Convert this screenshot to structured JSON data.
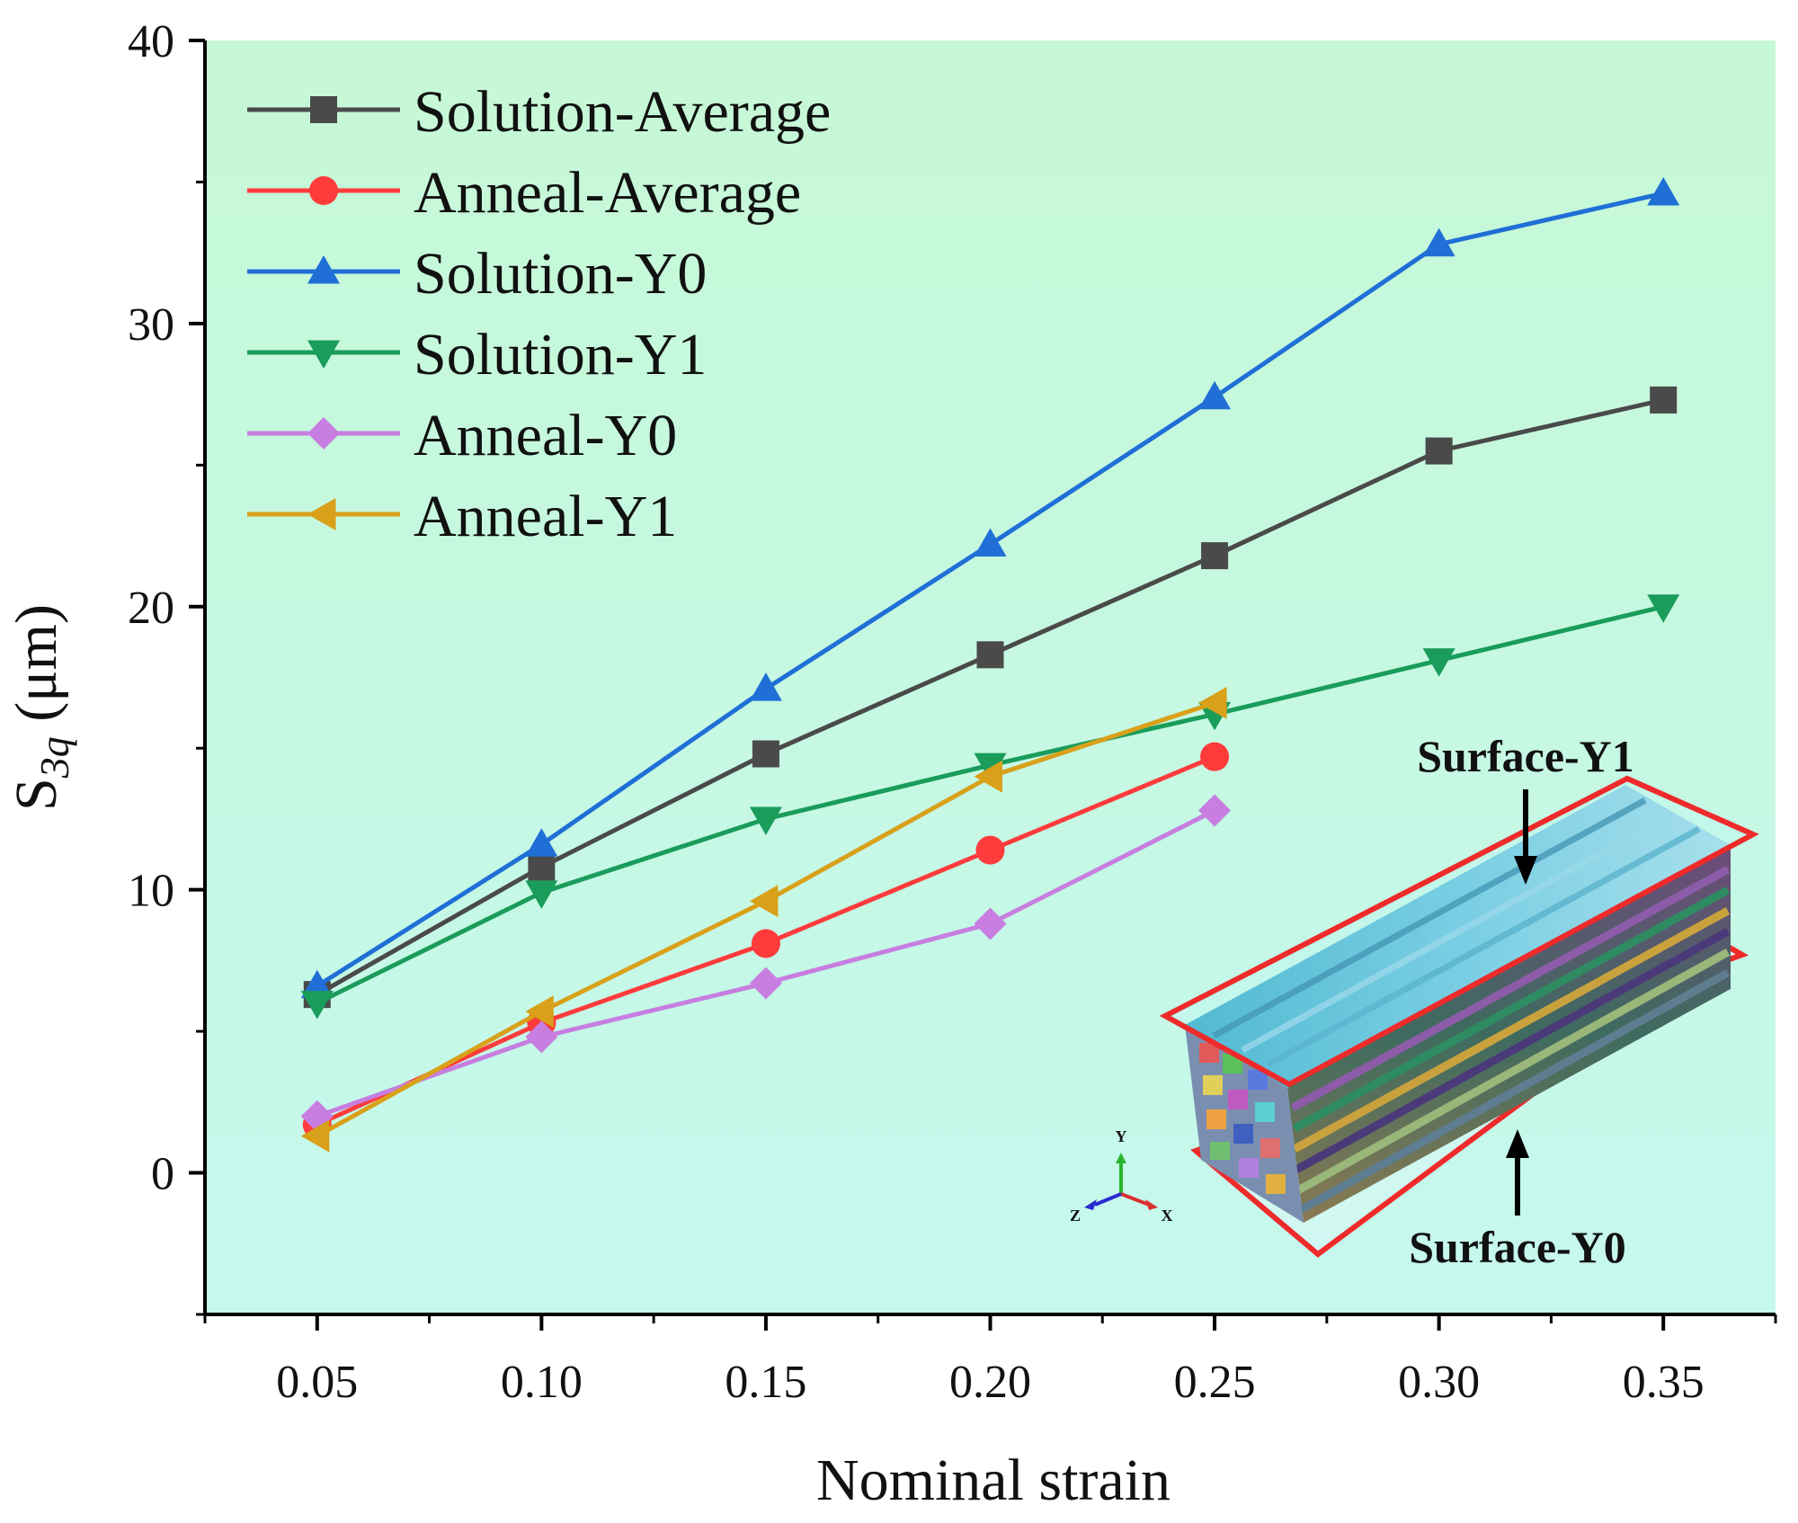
{
  "chart_data": {
    "type": "line",
    "title": "",
    "xlabel": "Nominal strain",
    "ylabel": "S3q (μm)",
    "ylabel_parts": {
      "main": "S",
      "sub": "3q",
      "unit": " (μm)"
    },
    "xlim": [
      0.025,
      0.375
    ],
    "ylim": [
      -5,
      40
    ],
    "x_ticks": [
      0.05,
      0.1,
      0.15,
      0.2,
      0.25,
      0.3,
      0.35
    ],
    "x_tick_labels": [
      "0.05",
      "0.10",
      "0.15",
      "0.20",
      "0.25",
      "0.30",
      "0.35"
    ],
    "y_ticks": [
      0,
      10,
      20,
      30,
      40
    ],
    "y_tick_labels": [
      "0",
      "10",
      "20",
      "30",
      "40"
    ],
    "grid": false,
    "background_color": "#c6f7e6",
    "legend_position": "top-left",
    "series": [
      {
        "name": "Solution-Average",
        "color": "#4a4a4a",
        "marker": "square",
        "x": [
          0.05,
          0.1,
          0.15,
          0.2,
          0.25,
          0.3,
          0.35
        ],
        "values": [
          6.3,
          10.8,
          14.8,
          18.3,
          21.8,
          25.5,
          27.3
        ]
      },
      {
        "name": "Anneal-Average",
        "color": "#ff3b3b",
        "marker": "circle",
        "x": [
          0.05,
          0.1,
          0.15,
          0.2,
          0.25
        ],
        "values": [
          1.7,
          5.3,
          8.1,
          11.4,
          14.7
        ]
      },
      {
        "name": "Solution-Y0",
        "color": "#1f6fd6",
        "marker": "triangle-up",
        "x": [
          0.05,
          0.1,
          0.15,
          0.2,
          0.25,
          0.3,
          0.35
        ],
        "values": [
          6.6,
          11.6,
          17.1,
          22.2,
          27.4,
          32.8,
          34.6
        ]
      },
      {
        "name": "Solution-Y1",
        "color": "#1a9c5a",
        "marker": "triangle-down",
        "x": [
          0.05,
          0.1,
          0.15,
          0.2,
          0.25,
          0.3,
          0.35
        ],
        "values": [
          6.0,
          9.9,
          12.5,
          14.4,
          16.2,
          18.1,
          20.0
        ]
      },
      {
        "name": "Anneal-Y0",
        "color": "#c77ee0",
        "marker": "diamond",
        "x": [
          0.05,
          0.1,
          0.15,
          0.2,
          0.25
        ],
        "values": [
          2.0,
          4.8,
          6.7,
          8.8,
          12.8
        ]
      },
      {
        "name": "Anneal-Y1",
        "color": "#d9a01a",
        "marker": "triangle-left",
        "x": [
          0.05,
          0.1,
          0.15,
          0.2,
          0.25
        ],
        "values": [
          1.3,
          5.7,
          9.6,
          14.0,
          16.6
        ]
      }
    ],
    "annotations": {
      "surface_top": "Surface-Y1",
      "surface_bottom": "Surface-Y0",
      "axis_y": "Y",
      "axis_z": "Z",
      "axis_x": "X"
    }
  }
}
